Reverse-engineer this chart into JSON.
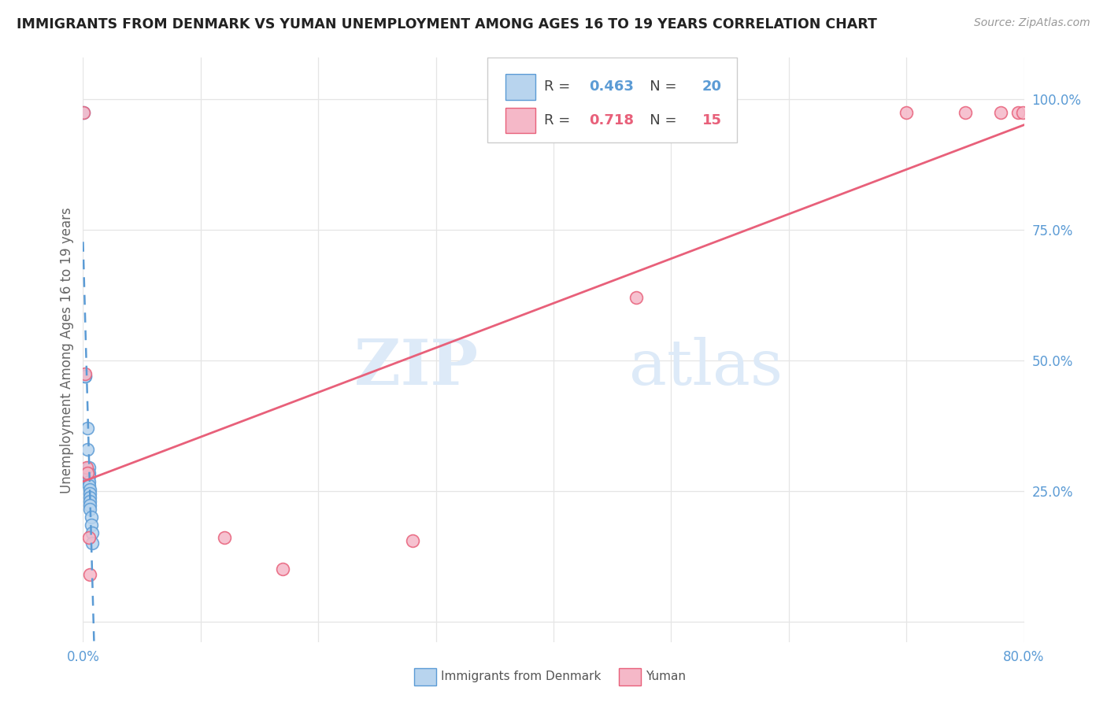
{
  "title": "IMMIGRANTS FROM DENMARK VS YUMAN UNEMPLOYMENT AMONG AGES 16 TO 19 YEARS CORRELATION CHART",
  "source": "Source: ZipAtlas.com",
  "ylabel": "Unemployment Among Ages 16 to 19 years",
  "x_min": 0.0,
  "x_max": 0.8,
  "y_min": -0.04,
  "y_max": 1.08,
  "legend_r_entries": [
    {
      "R": "0.463",
      "N": "20",
      "color": "#4a90d9"
    },
    {
      "R": "0.718",
      "N": "15",
      "color": "#e05080"
    }
  ],
  "denmark_points": [
    [
      0.0005,
      0.975
    ],
    [
      0.002,
      0.47
    ],
    [
      0.002,
      0.47
    ],
    [
      0.004,
      0.37
    ],
    [
      0.004,
      0.33
    ],
    [
      0.005,
      0.295
    ],
    [
      0.005,
      0.285
    ],
    [
      0.005,
      0.278
    ],
    [
      0.005,
      0.268
    ],
    [
      0.005,
      0.26
    ],
    [
      0.0055,
      0.252
    ],
    [
      0.006,
      0.245
    ],
    [
      0.006,
      0.238
    ],
    [
      0.006,
      0.23
    ],
    [
      0.006,
      0.222
    ],
    [
      0.006,
      0.215
    ],
    [
      0.007,
      0.2
    ],
    [
      0.007,
      0.185
    ],
    [
      0.008,
      0.17
    ],
    [
      0.008,
      0.15
    ]
  ],
  "yuman_points": [
    [
      0.0005,
      0.975
    ],
    [
      0.002,
      0.475
    ],
    [
      0.003,
      0.295
    ],
    [
      0.004,
      0.285
    ],
    [
      0.005,
      0.16
    ],
    [
      0.006,
      0.09
    ],
    [
      0.12,
      0.16
    ],
    [
      0.17,
      0.1
    ],
    [
      0.28,
      0.155
    ],
    [
      0.47,
      0.62
    ],
    [
      0.7,
      0.975
    ],
    [
      0.75,
      0.975
    ],
    [
      0.78,
      0.975
    ],
    [
      0.795,
      0.975
    ],
    [
      0.799,
      0.975
    ]
  ],
  "denmark_line_color": "#5b9bd5",
  "denmark_line_style": "--",
  "yuman_line_color": "#e8607a",
  "yuman_line_style": "-",
  "denmark_scatter_facecolor": "#b8d4ee",
  "yuman_scatter_facecolor": "#f5b8c8",
  "scatter_size": 130,
  "background_color": "#ffffff",
  "grid_color": "#e5e5e5",
  "title_color": "#222222",
  "axis_color": "#5b9bd5",
  "watermark_zip": "ZIP",
  "watermark_atlas": "atlas",
  "watermark_color": "#ddeaf8"
}
